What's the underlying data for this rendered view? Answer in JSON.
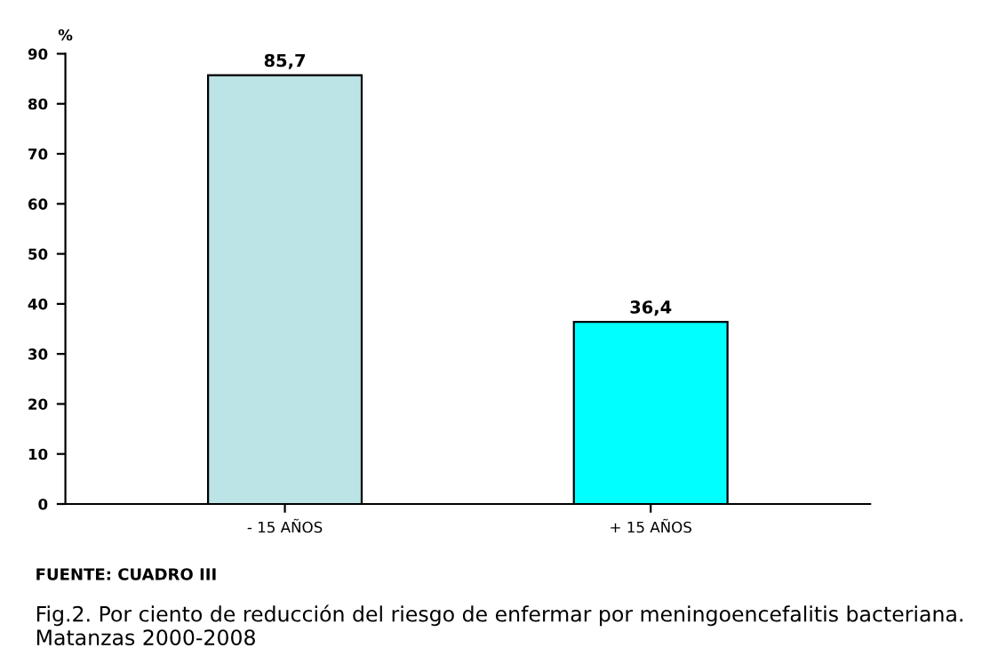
{
  "chart_data": {
    "type": "bar",
    "ylabel": "%",
    "categories": [
      "- 15 AÑOS",
      "+ 15 AÑOS"
    ],
    "values": [
      85.7,
      36.4
    ],
    "colors": [
      "#bce3e6",
      "#00ffff"
    ],
    "value_labels": [
      "85,7",
      "36,4"
    ],
    "ylim": [
      0,
      90
    ],
    "yticks": [
      0,
      10,
      20,
      30,
      40,
      50,
      60,
      70,
      80,
      90
    ],
    "grid": false,
    "legend": false,
    "annotations": [
      "FUENTE: CUADRO III",
      "Fig.2. Por ciento de reducción del riesgo de enfermar por meningoencefalitis bacteriana. Matanzas 2000-2008"
    ]
  }
}
